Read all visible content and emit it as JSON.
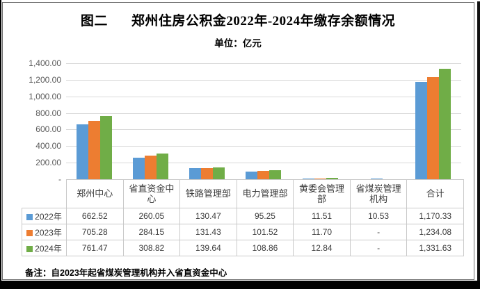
{
  "page": {
    "title_prefix": "图二",
    "title_main": "郑州住房公积金2022年-2024年缴存余额情况",
    "subtitle": "单位：亿元",
    "footnote": "备注：自2023年起省煤炭管理机构并入省直资金中心"
  },
  "chart_data": {
    "type": "bar",
    "title": "图二 郑州住房公积金2022年-2024年缴存余额情况",
    "unit_label": "单位：亿元",
    "categories": [
      "郑州中心",
      "省直资金中心",
      "铁路管理部",
      "电力管理部",
      "黄委会管理部",
      "省煤炭管理机构",
      "合计"
    ],
    "series": [
      {
        "name": "2022年",
        "color": "#5B9BD5",
        "values": [
          662.52,
          260.05,
          130.47,
          95.25,
          11.51,
          10.53,
          1170.33
        ],
        "labels": [
          "662.52",
          "260.05",
          "130.47",
          "95.25",
          "11.51",
          "10.53",
          "1,170.33"
        ]
      },
      {
        "name": "2023年",
        "color": "#ED7D31",
        "values": [
          705.28,
          284.15,
          131.43,
          101.52,
          11.7,
          0,
          1234.08
        ],
        "labels": [
          "705.28",
          "284.15",
          "131.43",
          "101.52",
          "11.70",
          "-",
          "1,234.08"
        ]
      },
      {
        "name": "2024年",
        "color": "#70AD47",
        "values": [
          761.47,
          308.82,
          139.64,
          108.86,
          12.84,
          0,
          1331.63
        ],
        "labels": [
          "761.47",
          "308.82",
          "139.64",
          "108.86",
          "12.84",
          "-",
          "1,331.63"
        ]
      }
    ],
    "ylim": [
      0,
      1400
    ],
    "ytick_step": 200,
    "ytick_labels": [
      "1,400.00",
      "1,200.00",
      "1,000.00",
      "800.00",
      "600.00",
      "400.00",
      "200.00",
      "-"
    ],
    "grid": true,
    "grid_color": "#D9D9D9",
    "axis_text_color": "#595959",
    "table_border_color": "#C9C9C9",
    "legend_position": "data-table-rows"
  }
}
